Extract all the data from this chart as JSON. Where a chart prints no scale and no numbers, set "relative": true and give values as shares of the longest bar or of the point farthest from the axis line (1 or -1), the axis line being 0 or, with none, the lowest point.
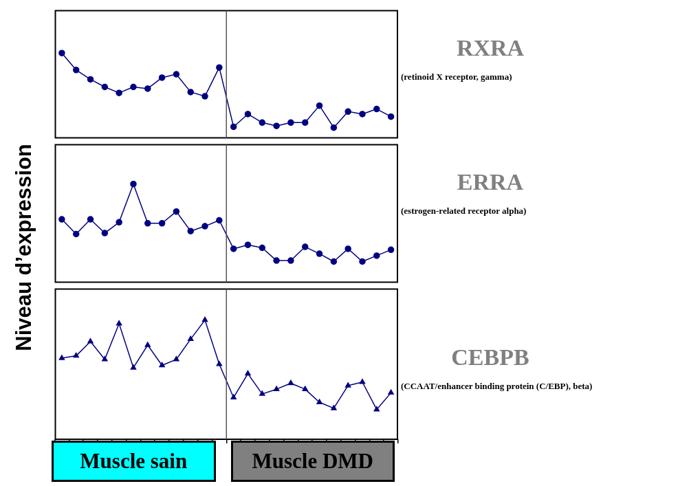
{
  "chart_data": [
    {
      "type": "line",
      "subtitle": "(retinoid X receptor, gamma)",
      "ylabel": "Niveau d’expression",
      "relative": true,
      "marker": "circle",
      "tick_labels": false,
      "grid": false,
      "legend": false,
      "categories": [
        null,
        null,
        null,
        null,
        null,
        null,
        null,
        null,
        null,
        null,
        null,
        null,
        null,
        null,
        null,
        null,
        null,
        null,
        null,
        null,
        null,
        null,
        null,
        null
      ],
      "series": [
        {
          "name": "RXRA",
          "color": "#000080",
          "values": [
            1,
            0.8,
            0.69,
            0.6,
            0.53,
            0.6,
            0.58,
            0.71,
            0.75,
            0.54,
            0.49,
            0.83,
            0.13,
            0.28,
            0.18,
            0.14,
            0.18,
            0.18,
            0.38,
            0.12,
            0.31,
            0.28,
            0.34,
            0.25
          ]
        }
      ]
    },
    {
      "type": "line",
      "subtitle": "(estrogen-related receptor alpha)",
      "relative": true,
      "marker": "circle",
      "tick_labels": false,
      "grid": false,
      "legend": false,
      "categories": [
        null,
        null,
        null,
        null,
        null,
        null,
        null,
        null,
        null,
        null,
        null,
        null,
        null,
        null,
        null,
        null,
        null,
        null,
        null,
        null,
        null,
        null,
        null,
        null
      ],
      "series": [
        {
          "name": "ERRA",
          "color": "#000080",
          "values": [
            0.64,
            0.49,
            0.64,
            0.5,
            0.61,
            1,
            0.6,
            0.6,
            0.72,
            0.52,
            0.57,
            0.63,
            0.34,
            0.38,
            0.35,
            0.22,
            0.22,
            0.36,
            0.29,
            0.21,
            0.34,
            0.21,
            0.27,
            0.33
          ]
        }
      ]
    },
    {
      "type": "line",
      "subtitle": "(CCAAT/enhancer binding protein (C/EBP), beta)",
      "relative": true,
      "marker": "triangle",
      "tick_labels": false,
      "grid": false,
      "legend": false,
      "categories": [
        null,
        null,
        null,
        null,
        null,
        null,
        null,
        null,
        null,
        null,
        null,
        null,
        null,
        null,
        null,
        null,
        null,
        null,
        null,
        null,
        null,
        null,
        null,
        null
      ],
      "series": [
        {
          "name": "CEBPB",
          "color": "#000080",
          "values": [
            0.68,
            0.7,
            0.82,
            0.67,
            0.97,
            0.6,
            0.79,
            0.62,
            0.67,
            0.84,
            1,
            0.63,
            0.35,
            0.55,
            0.38,
            0.42,
            0.47,
            0.42,
            0.31,
            0.26,
            0.45,
            0.48,
            0.25,
            0.39
          ]
        }
      ],
      "annotations": [
        "Muscle sain",
        "Muscle DMD"
      ]
    }
  ]
}
